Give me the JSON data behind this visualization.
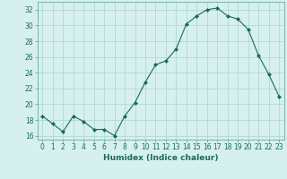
{
  "x": [
    0,
    1,
    2,
    3,
    4,
    5,
    6,
    7,
    8,
    9,
    10,
    11,
    12,
    13,
    14,
    15,
    16,
    17,
    18,
    19,
    20,
    21,
    22,
    23
  ],
  "y": [
    18.5,
    17.5,
    16.5,
    18.5,
    17.8,
    16.8,
    16.8,
    16.0,
    18.5,
    20.2,
    22.8,
    25.0,
    25.5,
    27.0,
    30.2,
    31.2,
    32.0,
    32.2,
    31.2,
    30.8,
    29.5,
    26.2,
    23.8,
    21.0
  ],
  "xlabel": "Humidex (Indice chaleur)",
  "ylim": [
    15.5,
    33.0
  ],
  "xlim": [
    -0.5,
    23.5
  ],
  "yticks": [
    16,
    18,
    20,
    22,
    24,
    26,
    28,
    30,
    32
  ],
  "xticks": [
    0,
    1,
    2,
    3,
    4,
    5,
    6,
    7,
    8,
    9,
    10,
    11,
    12,
    13,
    14,
    15,
    16,
    17,
    18,
    19,
    20,
    21,
    22,
    23
  ],
  "line_color": "#1a6b5a",
  "marker": "D",
  "marker_size": 2.0,
  "bg_color": "#d6f0ee",
  "grid_color": "#b0d8d4",
  "tick_label_fontsize": 5.5,
  "xlabel_fontsize": 6.5
}
